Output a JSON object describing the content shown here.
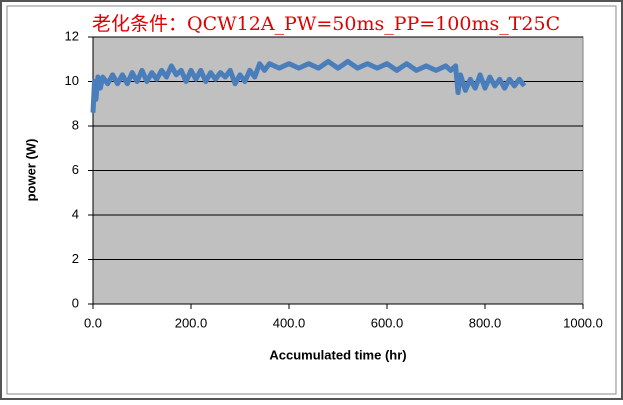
{
  "chart_data": {
    "type": "line",
    "title": "老化条件：QCW12A_PW=50ms_PP=100ms_T25C",
    "x_label": "Accumulated time (hr)",
    "y_label": "power (W)",
    "color": "#4a7ebb",
    "plot_background": "#c0c0c0",
    "grid": true,
    "xlim": [
      0,
      1000
    ],
    "xticks": [
      {
        "value": 0,
        "label": "0.0"
      },
      {
        "value": 200,
        "label": "200.0"
      },
      {
        "value": 400,
        "label": "400.0"
      },
      {
        "value": 600,
        "label": "600.0"
      },
      {
        "value": 800,
        "label": "800.0"
      },
      {
        "value": 1000,
        "label": "1000.0"
      }
    ],
    "ylim": [
      0,
      12
    ],
    "yticks": [
      0,
      2,
      4,
      6,
      8,
      10,
      12
    ],
    "x": [
      0,
      3,
      6,
      10,
      15,
      20,
      30,
      40,
      50,
      60,
      70,
      80,
      90,
      100,
      110,
      120,
      130,
      140,
      150,
      160,
      170,
      180,
      190,
      200,
      210,
      220,
      230,
      240,
      250,
      260,
      270,
      280,
      290,
      300,
      310,
      320,
      330,
      340,
      350,
      360,
      380,
      400,
      420,
      440,
      460,
      480,
      500,
      520,
      540,
      560,
      580,
      600,
      620,
      640,
      660,
      680,
      700,
      720,
      730,
      740,
      745,
      750,
      760,
      770,
      780,
      790,
      800,
      810,
      820,
      830,
      840,
      850,
      860,
      870,
      880
    ],
    "values": [
      8.6,
      10.0,
      9.2,
      10.2,
      9.7,
      10.2,
      9.9,
      10.3,
      9.9,
      10.3,
      9.9,
      10.4,
      10.0,
      10.5,
      10.0,
      10.4,
      10.1,
      10.5,
      10.2,
      10.7,
      10.3,
      10.5,
      10.0,
      10.5,
      10.1,
      10.5,
      10.0,
      10.4,
      10.1,
      10.4,
      10.2,
      10.5,
      9.9,
      10.3,
      10.0,
      10.5,
      10.2,
      10.8,
      10.5,
      10.8,
      10.6,
      10.8,
      10.6,
      10.8,
      10.6,
      10.9,
      10.6,
      10.9,
      10.6,
      10.8,
      10.6,
      10.8,
      10.5,
      10.8,
      10.5,
      10.7,
      10.5,
      10.7,
      10.5,
      10.7,
      9.5,
      10.3,
      9.6,
      10.1,
      9.7,
      10.3,
      9.7,
      10.2,
      9.8,
      10.1,
      9.7,
      10.1,
      9.8,
      10.1,
      9.8
    ]
  }
}
